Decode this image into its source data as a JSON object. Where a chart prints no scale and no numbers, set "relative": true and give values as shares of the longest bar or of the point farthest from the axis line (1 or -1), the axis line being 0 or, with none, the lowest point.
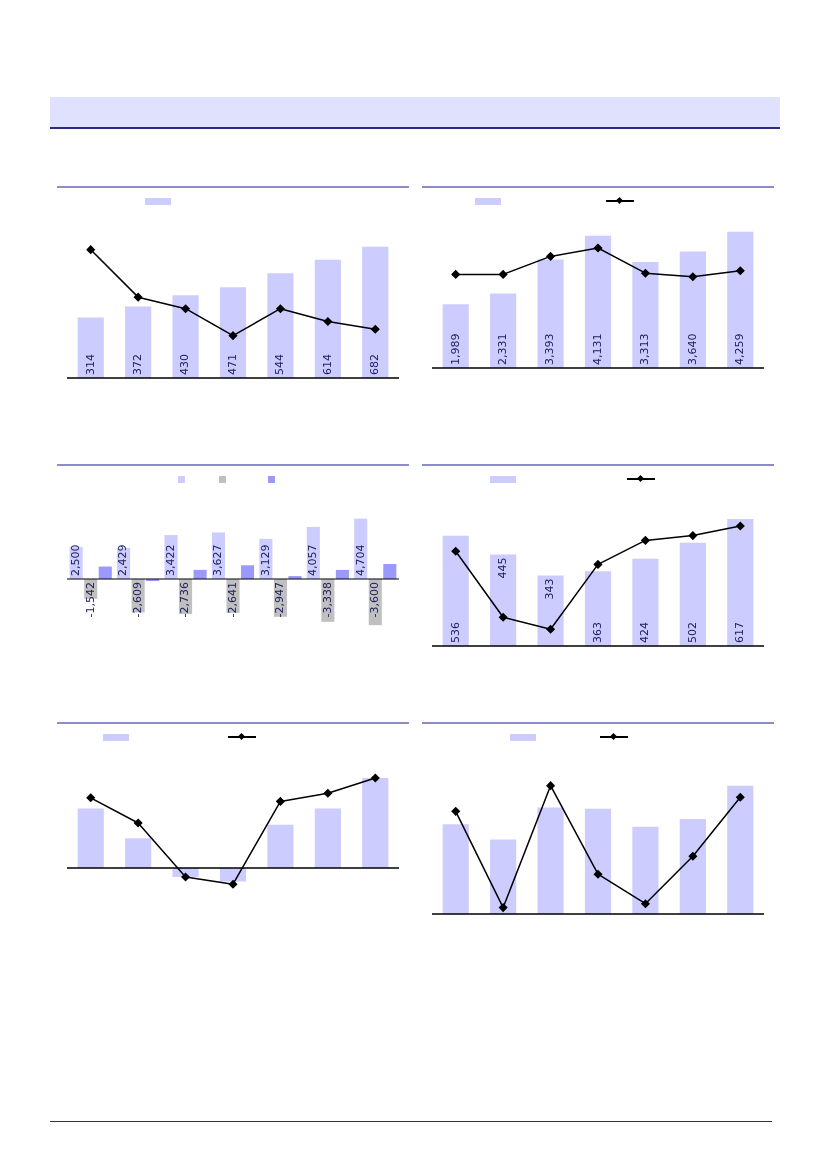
{
  "chart_data": [
    {
      "type": "bar",
      "categories": [
        null,
        null,
        null,
        null,
        null,
        null,
        null
      ],
      "tick_labels": false,
      "series": [
        {
          "color": "#ccccff",
          "values": [
            314,
            372,
            430,
            471,
            544,
            614,
            682
          ],
          "value_labels": [
            "314",
            "372",
            "430",
            "471",
            "544",
            "614",
            "682"
          ]
        }
      ]
    },
    {
      "type": "line",
      "relative": true,
      "categories": [
        null,
        null,
        null,
        null,
        null,
        null,
        null
      ],
      "marker": "diamond",
      "series": [
        {
          "color": "#000000",
          "values": [
            1,
            0.63,
            0.54,
            0.33,
            0.54,
            0.44,
            0.38
          ]
        }
      ]
    },
    {
      "type": "bar",
      "categories": [
        null,
        null,
        null,
        null,
        null,
        null,
        null
      ],
      "tick_labels": false,
      "series": [
        {
          "color": "#ccccff",
          "values": [
            1989,
            2331,
            3393,
            4131,
            3313,
            3640,
            4259
          ],
          "value_labels": [
            "1,989",
            "2,331",
            "3,393",
            "4,131",
            "3,313",
            "3,640",
            "4,259"
          ]
        }
      ]
    },
    {
      "type": "line",
      "relative": true,
      "categories": [
        null,
        null,
        null,
        null,
        null,
        null,
        null
      ],
      "marker": "diamond",
      "series": [
        {
          "color": "#000000",
          "values": [
            0.78,
            0.78,
            0.93,
            1,
            0.79,
            0.76,
            0.81
          ]
        }
      ]
    },
    {
      "type": "bar",
      "categories": [
        null,
        null,
        null,
        null,
        null,
        null,
        null
      ],
      "tick_labels": false,
      "series": [
        {
          "color": "#ccccff",
          "values": [
            2500,
            2429,
            3422,
            3627,
            3129,
            4057,
            4704
          ],
          "value_labels": [
            "2,500",
            "2,429",
            "3,422",
            "3,627",
            "3,129",
            "4,057",
            "4,704"
          ]
        },
        {
          "color": "#c0c0c0",
          "values": [
            -1542,
            -2609,
            -2736,
            -2641,
            -2947,
            -3338,
            -3600
          ],
          "value_labels": [
            "-1,542",
            "-2,609",
            "-2,736",
            "-2,641",
            "-2,947",
            "-3,338",
            "-3,600"
          ]
        },
        {
          "color": "#9999ff",
          "values": [
            970,
            -160,
            710,
            1070,
            230,
            710,
            1170
          ]
        }
      ]
    },
    {
      "type": "bar",
      "categories": [
        null,
        null,
        null,
        null,
        null,
        null,
        null
      ],
      "tick_labels": false,
      "series": [
        {
          "color": "#ccccff",
          "values": [
            536,
            445,
            343,
            363,
            424,
            502,
            617
          ],
          "value_labels": [
            "536",
            "445",
            "343",
            "363",
            "424",
            "502",
            "617"
          ]
        }
      ]
    },
    {
      "type": "line",
      "relative": true,
      "categories": [
        null,
        null,
        null,
        null,
        null,
        null,
        null
      ],
      "marker": "diamond",
      "series": [
        {
          "color": "#000000",
          "values": [
            0.79,
            0.24,
            0.14,
            0.68,
            0.88,
            0.92,
            1
          ]
        }
      ]
    },
    {
      "type": "bar",
      "relative": true,
      "categories": [
        null,
        null,
        null,
        null,
        null,
        null,
        null
      ],
      "series": [
        {
          "color": "#ccccff",
          "values": [
            0.66,
            0.33,
            -0.1,
            -0.15,
            0.48,
            0.66,
            1
          ]
        }
      ]
    },
    {
      "type": "line",
      "relative": true,
      "categories": [
        null,
        null,
        null,
        null,
        null,
        null,
        null
      ],
      "marker": "diamond",
      "series": [
        {
          "color": "#000000",
          "values": [
            0.78,
            0.5,
            -0.1,
            -0.18,
            0.74,
            0.83,
            1
          ]
        }
      ]
    },
    {
      "type": "bar",
      "relative": true,
      "categories": [
        null,
        null,
        null,
        null,
        null,
        null,
        null
      ],
      "series": [
        {
          "color": "#ccccff",
          "values": [
            0.7,
            0.58,
            0.83,
            0.82,
            0.68,
            0.74,
            1
          ]
        }
      ]
    },
    {
      "type": "line",
      "relative": true,
      "categories": [
        null,
        null,
        null,
        null,
        null,
        null,
        null
      ],
      "marker": "diamond",
      "series": [
        {
          "color": "#000000",
          "values": [
            0.8,
            0.05,
            1,
            0.31,
            0.08,
            0.45,
            0.91
          ]
        }
      ]
    }
  ]
}
